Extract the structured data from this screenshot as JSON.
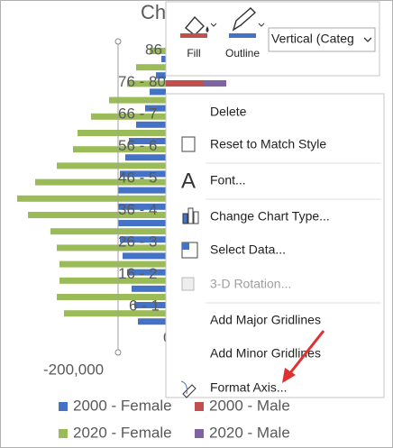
{
  "chart_title": "Ch",
  "axis_labels": [
    "86",
    "76 - 80",
    "66 - 7",
    "56 - 6",
    "46 - 5",
    "36 - 4",
    "26 - 3",
    "16 - 2",
    "6 - 1",
    "0"
  ],
  "x_axis_label": "-200,000",
  "legend": [
    {
      "name": "2000 - Female",
      "color": "#4472c4"
    },
    {
      "name": "2000 - Male",
      "color": "#c0504d"
    },
    {
      "name": "2020 - Female",
      "color": "#9bbb59"
    },
    {
      "name": "2020 - Male",
      "color": "#8064a2"
    }
  ],
  "toolbar": {
    "fill": "Fill",
    "outline": "Outline",
    "selector": "Vertical (Categ"
  },
  "context_menu": [
    "Delete",
    "Reset to Match Style",
    "Font...",
    "Change Chart Type...",
    "Select Data...",
    "3-D Rotation...",
    "Add Major Gridlines",
    "Add Minor Gridlines",
    "Format Axis..."
  ]
}
